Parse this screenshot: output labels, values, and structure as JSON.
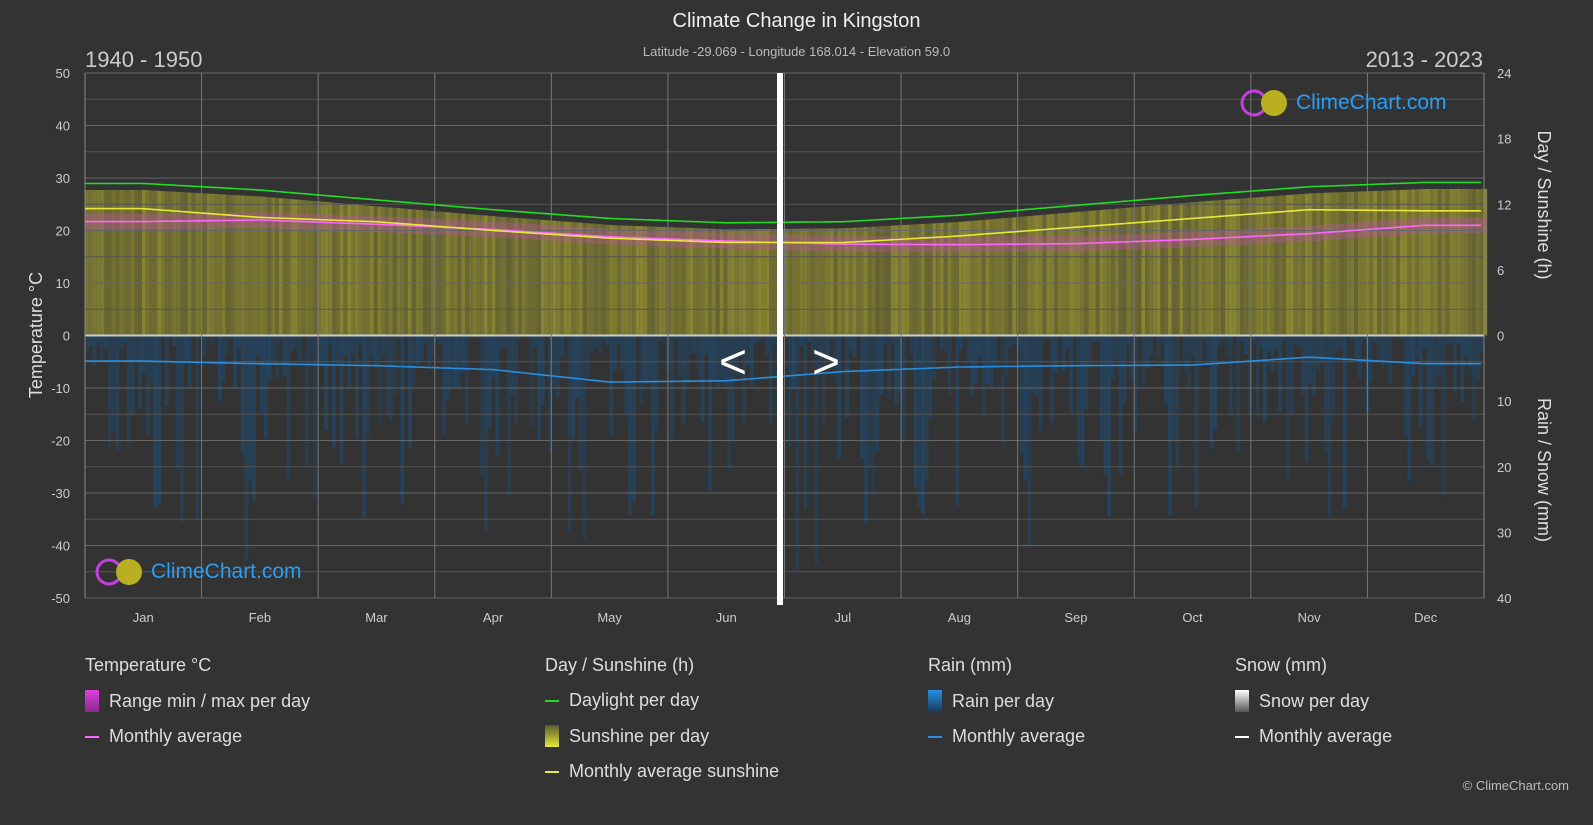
{
  "chart_data": {
    "type": "area",
    "title": "Climate Change in Kingston",
    "subtitle": "Latitude -29.069 - Longitude 168.014 - Elevation 59.0",
    "period_left": "1940 - 1950",
    "period_right": "2013 - 2023",
    "categories": [
      "Jan",
      "Feb",
      "Mar",
      "Apr",
      "May",
      "Jun",
      "Jul",
      "Aug",
      "Sep",
      "Oct",
      "Nov",
      "Dec"
    ],
    "y_left": {
      "label": "Temperature °C",
      "range": [
        -50,
        50
      ],
      "ticks": [
        "50",
        "40",
        "30",
        "20",
        "10",
        "0",
        "-10",
        "-20",
        "-30",
        "-40",
        "-50"
      ]
    },
    "y_right_top": {
      "label": "Day / Sunshine (h)",
      "range": [
        0,
        24
      ],
      "ticks": [
        "24",
        "18",
        "12",
        "6",
        "0"
      ]
    },
    "y_right_bottom": {
      "label": "Rain / Snow (mm)",
      "range": [
        0,
        40
      ],
      "ticks": [
        "0",
        "10",
        "20",
        "30",
        "40"
      ]
    },
    "series": [
      {
        "name": "Daylight per day",
        "unit": "h",
        "color": "#22dd22",
        "values": [
          13.9,
          13.3,
          12.4,
          11.5,
          10.7,
          10.3,
          10.4,
          11.0,
          11.9,
          12.8,
          13.6,
          14.0
        ]
      },
      {
        "name": "Monthly average sunshine",
        "unit": "h",
        "color": "#e8e83a",
        "values": [
          11.6,
          10.8,
          10.4,
          9.6,
          8.9,
          8.5,
          8.5,
          9.1,
          9.9,
          10.7,
          11.5,
          11.4
        ]
      },
      {
        "name": "Temperature monthly average",
        "unit": "°C",
        "color": "#ff66ff",
        "values": [
          21.7,
          22.0,
          21.2,
          20.2,
          18.8,
          18.0,
          17.4,
          17.3,
          17.5,
          18.3,
          19.4,
          21.0
        ]
      },
      {
        "name": "Rain monthly average",
        "unit": "mm",
        "color": "#2a8fe0",
        "values": [
          3.9,
          4.3,
          4.6,
          5.2,
          7.1,
          6.9,
          5.5,
          4.8,
          4.6,
          4.5,
          3.3,
          4.3
        ]
      }
    ],
    "nav": {
      "prev": "<",
      "next": ">"
    },
    "grid": true
  },
  "logo_text": "ClimeChart.com",
  "copyright": "© ClimeChart.com",
  "legend": {
    "temperature": {
      "title": "Temperature °C",
      "items": [
        "Range min / max per day",
        "Monthly average"
      ]
    },
    "sunshine": {
      "title": "Day / Sunshine (h)",
      "items": [
        "Daylight per day",
        "Sunshine per day",
        "Monthly average sunshine"
      ]
    },
    "rain": {
      "title": "Rain (mm)",
      "items": [
        "Rain per day",
        "Monthly average"
      ]
    },
    "snow": {
      "title": "Snow (mm)",
      "items": [
        "Snow per day",
        "Monthly average"
      ]
    }
  },
  "colors": {
    "bg": "#333333",
    "sunshine_fill": "#8e8a32",
    "rain_fill": "#1f4f78",
    "temp_range": "#c040c0"
  }
}
